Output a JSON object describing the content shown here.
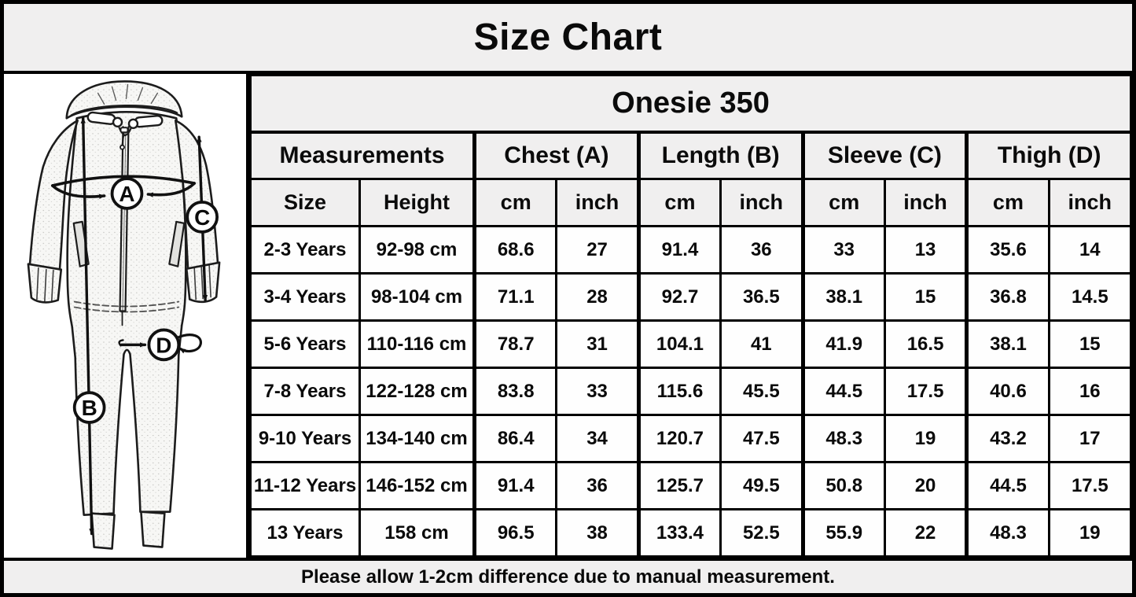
{
  "title": "Size Chart",
  "product_title": "Onesie 350",
  "footer_note": "Please allow 1-2cm difference due to manual measurement.",
  "diagram": {
    "label_a": "A",
    "label_b": "B",
    "label_c": "C",
    "label_d": "D"
  },
  "colors": {
    "band_bg": "#f0efef",
    "cell_bg": "#fefefe",
    "border": "#000000",
    "text": "#0b0b0b"
  },
  "chart_data": {
    "type": "table",
    "title": "Size Chart",
    "subtitle": "Onesie 350",
    "groups": [
      {
        "label": "Measurements",
        "sub": [
          "Size",
          "Height"
        ]
      },
      {
        "label": "Chest (A)",
        "sub": [
          "cm",
          "inch"
        ]
      },
      {
        "label": "Length (B)",
        "sub": [
          "cm",
          "inch"
        ]
      },
      {
        "label": "Sleeve (C)",
        "sub": [
          "cm",
          "inch"
        ]
      },
      {
        "label": "Thigh (D)",
        "sub": [
          "cm",
          "inch"
        ]
      }
    ],
    "columns": [
      "Size",
      "Height",
      "Chest cm",
      "Chest inch",
      "Length cm",
      "Length inch",
      "Sleeve cm",
      "Sleeve inch",
      "Thigh cm",
      "Thigh inch"
    ],
    "rows": [
      [
        "2-3 Years",
        "92-98 cm",
        "68.6",
        "27",
        "91.4",
        "36",
        "33",
        "13",
        "35.6",
        "14"
      ],
      [
        "3-4 Years",
        "98-104 cm",
        "71.1",
        "28",
        "92.7",
        "36.5",
        "38.1",
        "15",
        "36.8",
        "14.5"
      ],
      [
        "5-6 Years",
        "110-116 cm",
        "78.7",
        "31",
        "104.1",
        "41",
        "41.9",
        "16.5",
        "38.1",
        "15"
      ],
      [
        "7-8 Years",
        "122-128 cm",
        "83.8",
        "33",
        "115.6",
        "45.5",
        "44.5",
        "17.5",
        "40.6",
        "16"
      ],
      [
        "9-10 Years",
        "134-140 cm",
        "86.4",
        "34",
        "120.7",
        "47.5",
        "48.3",
        "19",
        "43.2",
        "17"
      ],
      [
        "11-12 Years",
        "146-152 cm",
        "91.4",
        "36",
        "125.7",
        "49.5",
        "50.8",
        "20",
        "44.5",
        "17.5"
      ],
      [
        "13 Years",
        "158 cm",
        "96.5",
        "38",
        "133.4",
        "52.5",
        "55.9",
        "22",
        "48.3",
        "19"
      ]
    ],
    "note": "Please allow 1-2cm difference due to manual measurement."
  }
}
